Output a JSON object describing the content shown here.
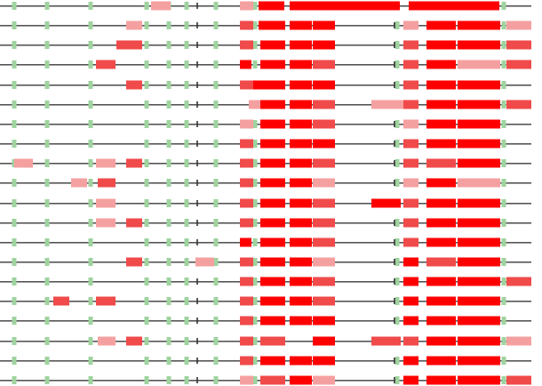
{
  "colors": {
    "line": "#555555",
    "tick": "#333333",
    "green": "#9fd39f",
    "red_strong": "#ff0000",
    "red_mid": "#f04a4a",
    "red_light": "#f5a0a0"
  },
  "tick_positions": [
    222,
    444
  ],
  "green_positions": [
    16,
    53,
    102,
    165,
    190,
    210,
    243,
    287,
    447,
    567
  ],
  "rows": [
    {
      "segments": [
        [
          170,
          192,
          "l"
        ],
        [
          270,
          285,
          "l"
        ],
        [
          291,
          320,
          "s"
        ],
        [
          326,
          351,
          "s"
        ],
        [
          351,
          450,
          "s"
        ],
        [
          460,
          562,
          "s"
        ]
      ]
    },
    {
      "segments": [
        [
          142,
          160,
          "l"
        ],
        [
          270,
          285,
          "m"
        ],
        [
          291,
          321,
          "s"
        ],
        [
          326,
          351,
          "s"
        ],
        [
          352,
          377,
          "s"
        ],
        [
          454,
          471,
          "l"
        ],
        [
          480,
          513,
          "s"
        ],
        [
          515,
          563,
          "s"
        ],
        [
          570,
          598,
          "l"
        ]
      ]
    },
    {
      "segments": [
        [
          131,
          160,
          "m"
        ],
        [
          270,
          285,
          "m"
        ],
        [
          293,
          321,
          "s"
        ],
        [
          326,
          351,
          "s"
        ],
        [
          352,
          377,
          "s"
        ],
        [
          454,
          471,
          "m"
        ],
        [
          480,
          513,
          "s"
        ],
        [
          515,
          563,
          "s"
        ],
        [
          570,
          598,
          "m"
        ]
      ]
    },
    {
      "segments": [
        [
          108,
          130,
          "m"
        ],
        [
          270,
          283,
          "s"
        ],
        [
          293,
          321,
          "s"
        ],
        [
          326,
          351,
          "s"
        ],
        [
          352,
          377,
          "m"
        ],
        [
          454,
          471,
          "m"
        ],
        [
          480,
          513,
          "s"
        ],
        [
          515,
          563,
          "l"
        ],
        [
          570,
          598,
          "m"
        ]
      ]
    },
    {
      "segments": [
        [
          142,
          160,
          "m"
        ],
        [
          270,
          285,
          "m"
        ],
        [
          285,
          321,
          "s"
        ],
        [
          326,
          351,
          "s"
        ],
        [
          352,
          377,
          "s"
        ],
        [
          454,
          471,
          "m"
        ],
        [
          480,
          513,
          "s"
        ],
        [
          515,
          563,
          "s"
        ]
      ]
    },
    {
      "segments": [
        [
          280,
          293,
          "l"
        ],
        [
          293,
          321,
          "s"
        ],
        [
          326,
          351,
          "s"
        ],
        [
          352,
          377,
          "m"
        ],
        [
          418,
          454,
          "l"
        ],
        [
          454,
          471,
          "m"
        ],
        [
          480,
          513,
          "s"
        ],
        [
          515,
          563,
          "s"
        ],
        [
          570,
          598,
          "m"
        ]
      ]
    },
    {
      "segments": [
        [
          270,
          285,
          "l"
        ],
        [
          293,
          321,
          "s"
        ],
        [
          326,
          351,
          "s"
        ],
        [
          352,
          377,
          "m"
        ],
        [
          454,
          471,
          "l"
        ],
        [
          480,
          513,
          "s"
        ],
        [
          515,
          563,
          "s"
        ]
      ]
    },
    {
      "segments": [
        [
          270,
          285,
          "m"
        ],
        [
          293,
          321,
          "s"
        ],
        [
          326,
          351,
          "s"
        ],
        [
          352,
          377,
          "s"
        ],
        [
          454,
          471,
          "m"
        ],
        [
          480,
          513,
          "s"
        ],
        [
          515,
          563,
          "s"
        ]
      ]
    },
    {
      "segments": [
        [
          16,
          37,
          "l"
        ],
        [
          108,
          130,
          "l"
        ],
        [
          142,
          160,
          "m"
        ],
        [
          270,
          285,
          "m"
        ],
        [
          293,
          321,
          "s"
        ],
        [
          326,
          351,
          "s"
        ],
        [
          352,
          377,
          "m"
        ],
        [
          454,
          471,
          "m"
        ],
        [
          480,
          513,
          "m"
        ],
        [
          515,
          563,
          "s"
        ]
      ]
    },
    {
      "segments": [
        [
          80,
          98,
          "l"
        ],
        [
          110,
          130,
          "m"
        ],
        [
          270,
          285,
          "m"
        ],
        [
          293,
          321,
          "s"
        ],
        [
          326,
          351,
          "s"
        ],
        [
          352,
          377,
          "l"
        ],
        [
          454,
          471,
          "l"
        ],
        [
          480,
          513,
          "s"
        ],
        [
          515,
          563,
          "l"
        ]
      ]
    },
    {
      "segments": [
        [
          108,
          130,
          "l"
        ],
        [
          270,
          285,
          "m"
        ],
        [
          293,
          321,
          "s"
        ],
        [
          326,
          351,
          "s"
        ],
        [
          352,
          377,
          "m"
        ],
        [
          418,
          451,
          "s"
        ],
        [
          454,
          471,
          "m"
        ],
        [
          480,
          513,
          "s"
        ],
        [
          515,
          563,
          "s"
        ]
      ]
    },
    {
      "segments": [
        [
          108,
          130,
          "l"
        ],
        [
          142,
          160,
          "m"
        ],
        [
          270,
          285,
          "m"
        ],
        [
          293,
          321,
          "s"
        ],
        [
          326,
          351,
          "s"
        ],
        [
          352,
          377,
          "m"
        ],
        [
          454,
          471,
          "m"
        ],
        [
          480,
          513,
          "s"
        ],
        [
          515,
          563,
          "s"
        ]
      ]
    },
    {
      "segments": [
        [
          270,
          283,
          "s"
        ],
        [
          293,
          321,
          "s"
        ],
        [
          326,
          351,
          "s"
        ],
        [
          352,
          377,
          "m"
        ],
        [
          454,
          471,
          "m"
        ],
        [
          480,
          513,
          "s"
        ],
        [
          515,
          563,
          "s"
        ]
      ]
    },
    {
      "segments": [
        [
          142,
          160,
          "m"
        ],
        [
          220,
          241,
          "l"
        ],
        [
          270,
          285,
          "m"
        ],
        [
          293,
          321,
          "s"
        ],
        [
          326,
          351,
          "s"
        ],
        [
          352,
          377,
          "l"
        ],
        [
          454,
          471,
          "s"
        ],
        [
          480,
          513,
          "m"
        ],
        [
          515,
          563,
          "s"
        ]
      ]
    },
    {
      "segments": [
        [
          270,
          285,
          "m"
        ],
        [
          293,
          321,
          "s"
        ],
        [
          326,
          351,
          "s"
        ],
        [
          352,
          377,
          "m"
        ],
        [
          454,
          471,
          "s"
        ],
        [
          480,
          513,
          "s"
        ],
        [
          515,
          563,
          "s"
        ],
        [
          570,
          598,
          "m"
        ]
      ]
    },
    {
      "segments": [
        [
          60,
          78,
          "m"
        ],
        [
          108,
          130,
          "m"
        ],
        [
          270,
          285,
          "m"
        ],
        [
          293,
          321,
          "s"
        ],
        [
          326,
          351,
          "s"
        ],
        [
          352,
          377,
          "m"
        ],
        [
          454,
          471,
          "s"
        ],
        [
          480,
          513,
          "s"
        ],
        [
          515,
          563,
          "s"
        ]
      ]
    },
    {
      "segments": [
        [
          270,
          285,
          "m"
        ],
        [
          293,
          321,
          "s"
        ],
        [
          326,
          351,
          "s"
        ],
        [
          352,
          377,
          "s"
        ],
        [
          454,
          471,
          "s"
        ],
        [
          480,
          513,
          "s"
        ],
        [
          515,
          563,
          "s"
        ]
      ]
    },
    {
      "segments": [
        [
          110,
          130,
          "l"
        ],
        [
          142,
          160,
          "m"
        ],
        [
          270,
          285,
          "m"
        ],
        [
          293,
          321,
          "m"
        ],
        [
          352,
          377,
          "s"
        ],
        [
          418,
          451,
          "m"
        ],
        [
          454,
          471,
          "m"
        ],
        [
          480,
          513,
          "s"
        ],
        [
          515,
          563,
          "s"
        ],
        [
          570,
          598,
          "l"
        ]
      ]
    },
    {
      "segments": [
        [
          270,
          285,
          "m"
        ],
        [
          293,
          321,
          "s"
        ],
        [
          326,
          351,
          "s"
        ],
        [
          352,
          377,
          "s"
        ],
        [
          454,
          471,
          "s"
        ],
        [
          480,
          513,
          "s"
        ],
        [
          515,
          563,
          "s"
        ]
      ]
    },
    {
      "segments": [
        [
          270,
          285,
          "l"
        ],
        [
          293,
          321,
          "m"
        ],
        [
          326,
          351,
          "s"
        ],
        [
          352,
          377,
          "l"
        ],
        [
          454,
          471,
          "s"
        ],
        [
          480,
          513,
          "s"
        ],
        [
          515,
          563,
          "s"
        ],
        [
          570,
          598,
          "m"
        ]
      ]
    }
  ]
}
